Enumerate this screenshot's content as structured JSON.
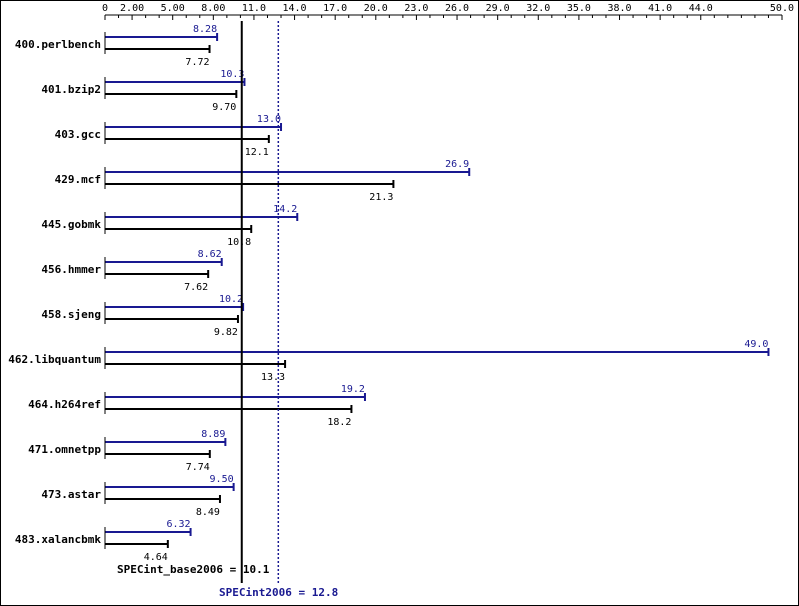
{
  "colors": {
    "peak": "#191991",
    "base": "#000000"
  },
  "chart_data": {
    "type": "bar",
    "orientation": "horizontal",
    "xlim": [
      0,
      50
    ],
    "x_ticks": [
      "0",
      "2.00",
      "5.00",
      "8.00",
      "11.0",
      "14.0",
      "17.0",
      "20.0",
      "23.0",
      "26.0",
      "29.0",
      "32.0",
      "35.0",
      "38.0",
      "41.0",
      "44.0",
      "50.0"
    ],
    "x_tick_values": [
      0,
      2,
      5,
      8,
      11,
      14,
      17,
      20,
      23,
      26,
      29,
      32,
      35,
      38,
      41,
      44,
      50
    ],
    "categories": [
      "400.perlbench",
      "401.bzip2",
      "403.gcc",
      "429.mcf",
      "445.gobmk",
      "456.hmmer",
      "458.sjeng",
      "462.libquantum",
      "464.h264ref",
      "471.omnetpp",
      "473.astar",
      "483.xalancbmk"
    ],
    "series": [
      {
        "name": "SPECint2006",
        "values": [
          8.28,
          10.3,
          13.0,
          26.9,
          14.2,
          8.62,
          10.2,
          49.0,
          19.2,
          8.89,
          9.5,
          6.32
        ],
        "labels": [
          "8.28",
          "10.3",
          "13.0",
          "26.9",
          "14.2",
          "8.62",
          "10.2",
          "49.0",
          "19.2",
          "8.89",
          "9.50",
          "6.32"
        ]
      },
      {
        "name": "SPECint_base2006",
        "values": [
          7.72,
          9.7,
          12.1,
          21.3,
          10.8,
          7.62,
          9.82,
          13.3,
          18.2,
          7.74,
          8.49,
          4.64
        ],
        "labels": [
          "7.72",
          "9.70",
          "12.1",
          "21.3",
          "10.8",
          "7.62",
          "9.82",
          "13.3",
          "18.2",
          "7.74",
          "8.49",
          "4.64"
        ]
      }
    ],
    "reference_lines": [
      {
        "name": "SPECint_base2006",
        "value": 10.1,
        "label": "SPECint_base2006 = 10.1",
        "style": "solid"
      },
      {
        "name": "SPECint2006",
        "value": 12.8,
        "label": "SPECint2006 = 12.8",
        "style": "dotted"
      }
    ],
    "grid": false,
    "legend": "none"
  }
}
